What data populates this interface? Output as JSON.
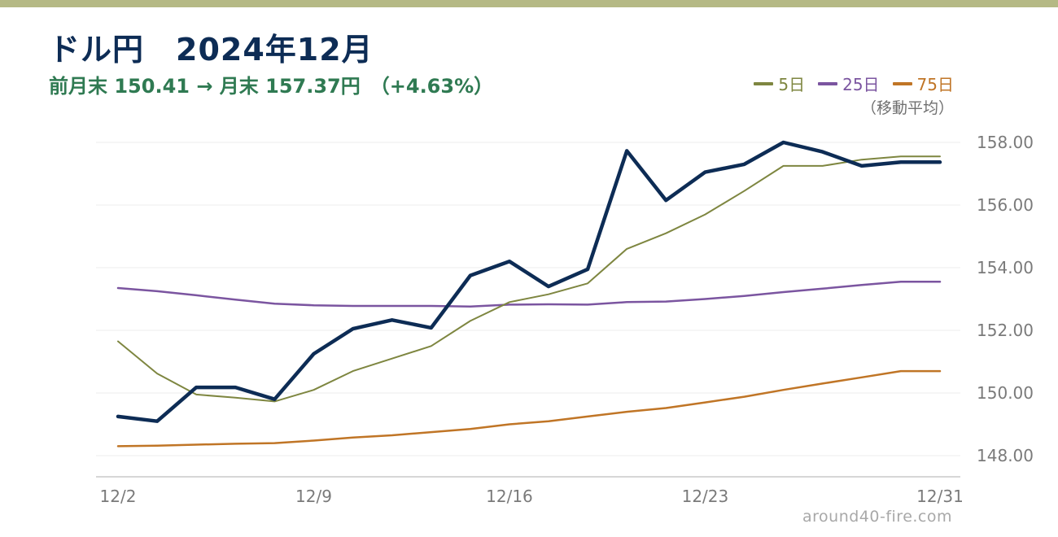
{
  "header": {
    "title": "ドル円　2024年12月",
    "subtitle": "前月末 150.41 → 月末 157.37円　（+4.63%）"
  },
  "legend": {
    "note": "（移動平均）"
  },
  "source": "around40-fire.com",
  "chart_data": {
    "type": "line",
    "x": [
      "12/2",
      "12/3",
      "12/4",
      "12/5",
      "12/6",
      "12/9",
      "12/10",
      "12/11",
      "12/12",
      "12/13",
      "12/16",
      "12/17",
      "12/18",
      "12/19",
      "12/20",
      "12/23",
      "12/24",
      "12/25",
      "12/26",
      "12/27",
      "12/30",
      "12/31"
    ],
    "x_ticks": [
      "12/2",
      "12/9",
      "12/16",
      "12/23",
      "12/31"
    ],
    "ylim": [
      147.5,
      158.5
    ],
    "y_ticks": [
      "148.00",
      "150.00",
      "152.00",
      "154.00",
      "156.00",
      "158.00"
    ],
    "grid": true,
    "legend_position": "top-right",
    "series": [
      {
        "name": "ドル円",
        "color": "#0d2c55",
        "width": 4.5,
        "values": [
          149.25,
          149.1,
          150.18,
          150.18,
          149.8,
          151.25,
          152.05,
          152.33,
          152.08,
          153.75,
          154.2,
          153.4,
          153.95,
          157.73,
          156.15,
          157.05,
          157.3,
          158.0,
          157.7,
          157.25,
          157.37,
          157.37
        ]
      },
      {
        "name": "5日",
        "color": "#7e8640",
        "width": 2,
        "values": [
          151.65,
          150.62,
          149.95,
          149.85,
          149.73,
          150.1,
          150.7,
          151.1,
          151.5,
          152.3,
          152.9,
          153.15,
          153.5,
          154.6,
          155.1,
          155.7,
          156.45,
          157.25,
          157.25,
          157.45,
          157.55,
          157.55
        ]
      },
      {
        "name": "25日",
        "color": "#7b55a0",
        "width": 2.5,
        "values": [
          153.35,
          153.25,
          153.12,
          152.98,
          152.85,
          152.8,
          152.78,
          152.78,
          152.78,
          152.76,
          152.82,
          152.83,
          152.82,
          152.9,
          152.92,
          153.0,
          153.1,
          153.22,
          153.33,
          153.45,
          153.55,
          153.55
        ]
      },
      {
        "name": "75日",
        "color": "#c07526",
        "width": 2.5,
        "values": [
          148.3,
          148.32,
          148.35,
          148.38,
          148.4,
          148.48,
          148.58,
          148.65,
          148.75,
          148.85,
          149.0,
          149.1,
          149.25,
          149.4,
          149.52,
          149.7,
          149.88,
          150.1,
          150.3,
          150.5,
          150.7,
          150.7
        ]
      }
    ]
  }
}
